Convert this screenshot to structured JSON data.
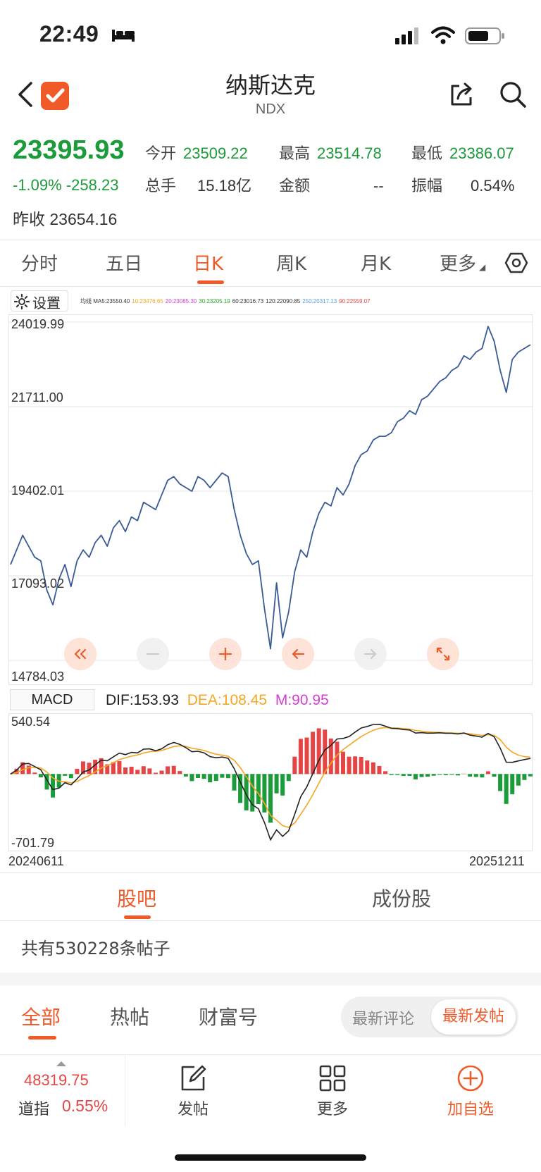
{
  "status_bar": {
    "time": "22:49"
  },
  "header": {
    "title": "纳斯达克",
    "code": "NDX"
  },
  "quote": {
    "price": "23395.93",
    "change_pct": "-1.09%",
    "change": "-258.23",
    "prev_close_label": "昨收",
    "prev_close": "23654.16",
    "fields": [
      {
        "label": "今开",
        "value": "23509.22"
      },
      {
        "label": "最高",
        "value": "23514.78"
      },
      {
        "label": "最低",
        "value": "23386.07"
      },
      {
        "label": "总手",
        "value": "15.18亿"
      },
      {
        "label": "金额",
        "value": "--"
      },
      {
        "label": "振幅",
        "value": "0.54%"
      }
    ],
    "colors": {
      "down": "#1c9b3a",
      "up": "#e64545",
      "accent": "#f05a28"
    }
  },
  "period_tabs": [
    "分时",
    "五日",
    "日K",
    "周K",
    "月K",
    "更多"
  ],
  "active_period": "日K",
  "chart": {
    "settings_label": "设置",
    "ma_legend": [
      {
        "text": "均线 MA5:23550.40",
        "color": "#333333"
      },
      {
        "text": "10:23476.65",
        "color": "#f5a623"
      },
      {
        "text": "20:23085.30",
        "color": "#d63dd6"
      },
      {
        "text": "30:23205.19",
        "color": "#2ca02c"
      },
      {
        "text": "60:23016.73",
        "color": "#333333"
      },
      {
        "text": "120:22090.85",
        "color": "#333333"
      },
      {
        "text": "250:20317.13",
        "color": "#5aa0e0"
      },
      {
        "text": "90:22559.07",
        "color": "#e64545"
      }
    ],
    "y_ticks": [
      "24019.99",
      "21711.00",
      "19402.01",
      "17093.02",
      "14784.03"
    ]
  },
  "chart_data": {
    "type": "line",
    "x_start": "20240611",
    "x_end": "20251211",
    "ylim": [
      14784.03,
      24019.99
    ],
    "series": [
      {
        "values": [
          17400,
          17800,
          18200,
          17900,
          17600,
          17500,
          16700,
          16300,
          17000,
          17400,
          16800,
          17500,
          17800,
          17600,
          18000,
          18200,
          17900,
          18400,
          18600,
          18300,
          18700,
          18600,
          19100,
          19000,
          18900,
          19300,
          19700,
          19800,
          19600,
          19500,
          19400,
          19800,
          19700,
          19500,
          19700,
          19900,
          19800,
          18900,
          18200,
          17700,
          17400,
          17500,
          16200,
          15100,
          16900,
          15400,
          16100,
          17200,
          17800,
          17600,
          18300,
          18800,
          19100,
          19000,
          19500,
          19300,
          19600,
          20100,
          20400,
          20500,
          20800,
          20900,
          20900,
          21000,
          21300,
          21400,
          21600,
          21500,
          21900,
          22000,
          22200,
          22400,
          22500,
          22700,
          22800,
          23100,
          23000,
          23200,
          23300,
          23900,
          23500,
          22700,
          22100,
          23000,
          23200,
          23300,
          23400
        ]
      }
    ]
  },
  "macd": {
    "label": "MACD",
    "dif": "DIF:153.93",
    "dea": "DEA:108.45",
    "m": "M:90.95",
    "top": "540.54",
    "bottom": "-701.79",
    "date_start": "20240611",
    "date_end": "20251211"
  },
  "section_tabs": [
    "股吧",
    "成份股"
  ],
  "posts_count": "共有530228条帖子",
  "feed_tabs": [
    "全部",
    "热帖",
    "财富号"
  ],
  "sort_toggle": [
    "最新评论",
    "最新发帖"
  ],
  "bottom_bar": {
    "index_value": "48319.75",
    "index_name": "道指",
    "index_pct": "0.55%",
    "items": [
      "发帖",
      "更多",
      "加自选"
    ]
  }
}
